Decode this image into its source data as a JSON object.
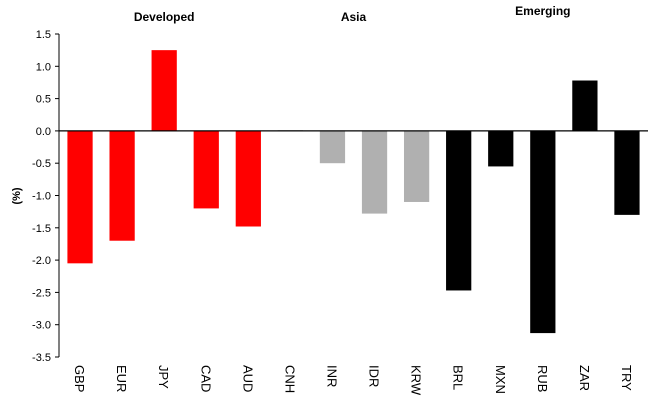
{
  "chart_data": {
    "type": "bar",
    "ylabel": "(%)",
    "ylim": [
      -3.5,
      1.5
    ],
    "yticks": [
      "1.5",
      "1.0",
      "0.5",
      "0.0",
      "-0.5",
      "-1.0",
      "-1.5",
      "-2.0",
      "-2.5",
      "-3.0",
      "-3.5"
    ],
    "grid": false,
    "legend": "none",
    "categories": [
      "GBP",
      "EUR",
      "JPY",
      "CAD",
      "AUD",
      "CNH",
      "INR",
      "IDR",
      "KRW",
      "BRL",
      "MXN",
      "RUB",
      "ZAR",
      "TRY"
    ],
    "values": [
      -2.05,
      -1.7,
      1.25,
      -1.2,
      -1.48,
      0.01,
      -0.5,
      -1.28,
      -1.1,
      -2.47,
      -0.55,
      -3.13,
      0.78,
      -1.3
    ],
    "groups": [
      {
        "label": "Developed",
        "categories": [
          "GBP",
          "EUR",
          "JPY",
          "CAD",
          "AUD"
        ],
        "color": "#ff0000"
      },
      {
        "label": "Asia",
        "categories": [
          "CNH",
          "INR",
          "IDR",
          "KRW"
        ],
        "color": "#b0b0b0"
      },
      {
        "label": "Emerging",
        "categories": [
          "BRL",
          "MXN",
          "RUB",
          "ZAR",
          "TRY"
        ],
        "color": "#000000"
      }
    ]
  }
}
